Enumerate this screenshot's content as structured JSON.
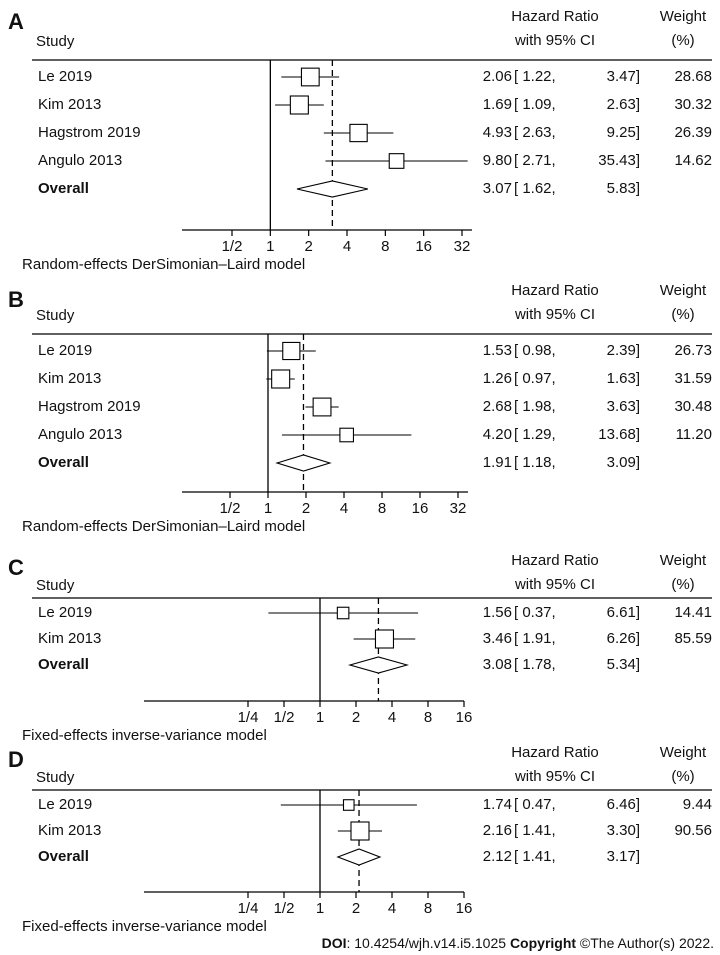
{
  "header_labels": {
    "study": "Study",
    "hr_line1": "Hazard Ratio",
    "hr_line2": "with 95% CI",
    "weight_line1": "Weight",
    "weight_line2": "(%)"
  },
  "footer": {
    "doi_label": "DOI",
    "doi_value": ": 10.4254/wjh.v14.i5.1025 ",
    "copyright_label": "Copyright",
    "copyright_value": " ©The Author(s) 2022."
  },
  "chart_data": [
    {
      "type": "forest",
      "panel_label": "A",
      "x_scale": "log2",
      "xlim": [
        0.5,
        32
      ],
      "ticks": [
        0.5,
        1,
        2,
        4,
        8,
        16,
        32
      ],
      "tick_labels": [
        "1/2",
        "1",
        "2",
        "4",
        "8",
        "16",
        "32"
      ],
      "model": "Random-effects DerSimonian–Laird model",
      "studies": [
        {
          "name": "Le 2019",
          "hr": 2.06,
          "lo": 1.22,
          "hi": 3.47,
          "hr_text": "2.06",
          "ci_text": "[ 1.22,",
          "hi_text": "3.47]",
          "weight": 28.68,
          "weight_text": "28.68"
        },
        {
          "name": "Kim 2013",
          "hr": 1.69,
          "lo": 1.09,
          "hi": 2.63,
          "hr_text": "1.69",
          "ci_text": "[ 1.09,",
          "hi_text": "2.63]",
          "weight": 30.32,
          "weight_text": "30.32"
        },
        {
          "name": "Hagstrom 2019",
          "hr": 4.93,
          "lo": 2.63,
          "hi": 9.25,
          "hr_text": "4.93",
          "ci_text": "[ 2.63,",
          "hi_text": "9.25]",
          "weight": 26.39,
          "weight_text": "26.39"
        },
        {
          "name": "Angulo 2013",
          "hr": 9.8,
          "lo": 2.71,
          "hi": 35.43,
          "hr_text": "9.80",
          "ci_text": "[ 2.71,",
          "hi_text": "35.43]",
          "weight": 14.62,
          "weight_text": "14.62"
        }
      ],
      "overall": {
        "name": "Overall",
        "hr": 3.07,
        "lo": 1.62,
        "hi": 5.83,
        "hr_text": "3.07",
        "ci_text": "[ 1.62,",
        "hi_text": "5.83]"
      }
    },
    {
      "type": "forest",
      "panel_label": "B",
      "x_scale": "log2",
      "xlim": [
        0.5,
        32
      ],
      "ticks": [
        0.5,
        1,
        2,
        4,
        8,
        16,
        32
      ],
      "tick_labels": [
        "1/2",
        "1",
        "2",
        "4",
        "8",
        "16",
        "32"
      ],
      "model": "Random-effects DerSimonian–Laird model",
      "studies": [
        {
          "name": "Le 2019",
          "hr": 1.53,
          "lo": 0.98,
          "hi": 2.39,
          "hr_text": "1.53",
          "ci_text": "[ 0.98,",
          "hi_text": "2.39]",
          "weight": 26.73,
          "weight_text": "26.73"
        },
        {
          "name": "Kim 2013",
          "hr": 1.26,
          "lo": 0.97,
          "hi": 1.63,
          "hr_text": "1.26",
          "ci_text": "[ 0.97,",
          "hi_text": "1.63]",
          "weight": 31.59,
          "weight_text": "31.59"
        },
        {
          "name": "Hagstrom 2019",
          "hr": 2.68,
          "lo": 1.98,
          "hi": 3.63,
          "hr_text": "2.68",
          "ci_text": "[ 1.98,",
          "hi_text": "3.63]",
          "weight": 30.48,
          "weight_text": "30.48"
        },
        {
          "name": "Angulo 2013",
          "hr": 4.2,
          "lo": 1.29,
          "hi": 13.68,
          "hr_text": "4.20",
          "ci_text": "[ 1.29,",
          "hi_text": "13.68]",
          "weight": 11.2,
          "weight_text": "11.20"
        }
      ],
      "overall": {
        "name": "Overall",
        "hr": 1.91,
        "lo": 1.18,
        "hi": 3.09,
        "hr_text": "1.91",
        "ci_text": "[ 1.18,",
        "hi_text": "3.09]"
      }
    },
    {
      "type": "forest",
      "panel_label": "C",
      "x_scale": "log2",
      "xlim": [
        0.25,
        16
      ],
      "ticks": [
        0.25,
        0.5,
        1,
        2,
        4,
        8,
        16
      ],
      "tick_labels": [
        "1/4",
        "1/2",
        "1",
        "2",
        "4",
        "8",
        "16"
      ],
      "model": "Fixed-effects inverse-variance model",
      "studies": [
        {
          "name": "Le 2019",
          "hr": 1.56,
          "lo": 0.37,
          "hi": 6.61,
          "hr_text": "1.56",
          "ci_text": "[ 0.37,",
          "hi_text": "6.61]",
          "weight": 14.41,
          "weight_text": "14.41"
        },
        {
          "name": "Kim 2013",
          "hr": 3.46,
          "lo": 1.91,
          "hi": 6.26,
          "hr_text": "3.46",
          "ci_text": "[ 1.91,",
          "hi_text": "6.26]",
          "weight": 85.59,
          "weight_text": "85.59"
        }
      ],
      "overall": {
        "name": "Overall",
        "hr": 3.08,
        "lo": 1.78,
        "hi": 5.34,
        "hr_text": "3.08",
        "ci_text": "[ 1.78,",
        "hi_text": "5.34]"
      }
    },
    {
      "type": "forest",
      "panel_label": "D",
      "x_scale": "log2",
      "xlim": [
        0.25,
        16
      ],
      "ticks": [
        0.25,
        0.5,
        1,
        2,
        4,
        8,
        16
      ],
      "tick_labels": [
        "1/4",
        "1/2",
        "1",
        "2",
        "4",
        "8",
        "16"
      ],
      "model": "Fixed-effects inverse-variance model",
      "studies": [
        {
          "name": "Le 2019",
          "hr": 1.74,
          "lo": 0.47,
          "hi": 6.46,
          "hr_text": "1.74",
          "ci_text": "[ 0.47,",
          "hi_text": "6.46]",
          "weight": 9.44,
          "weight_text": "9.44"
        },
        {
          "name": "Kim 2013",
          "hr": 2.16,
          "lo": 1.41,
          "hi": 3.3,
          "hr_text": "2.16",
          "ci_text": "[ 1.41,",
          "hi_text": "3.30]",
          "weight": 90.56,
          "weight_text": "90.56"
        }
      ],
      "overall": {
        "name": "Overall",
        "hr": 2.12,
        "lo": 1.41,
        "hi": 3.17,
        "hr_text": "2.12",
        "ci_text": "[ 1.41,",
        "hi_text": "3.17]"
      }
    }
  ]
}
